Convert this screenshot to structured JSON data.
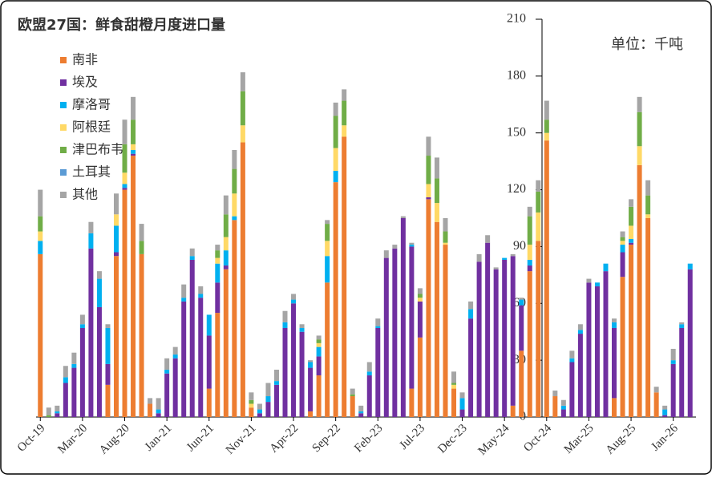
{
  "chart_data": {
    "type": "stacked_bar",
    "title": "欧盟27国：鲜食甜橙月度进口量",
    "unit_label": "单位：千吨",
    "categories": [
      "Oct-19",
      null,
      null,
      null,
      null,
      "Mar-20",
      null,
      null,
      null,
      null,
      "Aug-20",
      null,
      null,
      null,
      null,
      "Jan-21",
      null,
      null,
      null,
      null,
      "Jun-21",
      null,
      null,
      null,
      null,
      "Nov-21",
      null,
      null,
      null,
      null,
      "Apr-22",
      null,
      null,
      null,
      null,
      "Sep-22",
      null,
      null,
      null,
      null,
      "Feb-23",
      null,
      null,
      null,
      null,
      "Jul-23",
      null,
      null,
      null,
      null,
      "Dec-23",
      null,
      null,
      null,
      null,
      "May-24",
      null,
      null,
      null,
      null,
      "Oct-24",
      null,
      null,
      null,
      null,
      "Mar-25",
      null,
      null,
      null,
      null,
      "Aug-25",
      null,
      null,
      null,
      null,
      "Jan-26",
      null,
      null
    ],
    "series": [
      {
        "name": "南非",
        "color": "#ED7D31",
        "values": [
          86,
          0,
          0,
          0,
          0,
          0,
          0,
          0,
          17,
          85,
          120,
          138,
          86,
          7,
          0,
          0,
          0,
          0,
          0,
          0,
          15,
          55,
          78,
          104,
          145,
          5,
          0,
          0,
          0,
          0,
          0,
          0,
          3,
          22,
          71,
          124,
          148,
          11,
          0,
          0,
          0,
          0,
          0,
          0,
          15,
          42,
          115,
          103,
          91,
          15,
          0,
          0,
          0,
          0,
          0,
          0,
          6,
          35,
          77,
          93,
          146,
          11,
          0,
          0,
          0,
          0,
          0,
          0,
          10,
          74,
          91,
          133,
          105,
          13,
          0,
          0,
          0,
          0
        ]
      },
      {
        "name": "埃及",
        "color": "#7030A0",
        "values": [
          0,
          0,
          2,
          18,
          26,
          47,
          89,
          58,
          11,
          2,
          1,
          1,
          0,
          0,
          2,
          23,
          31,
          61,
          83,
          63,
          28,
          16,
          2,
          0,
          0,
          0,
          2,
          8,
          17,
          47,
          60,
          45,
          23,
          10,
          0,
          0,
          0,
          0,
          2,
          22,
          47,
          84,
          89,
          105,
          75,
          19,
          1,
          0,
          0,
          0,
          4,
          52,
          82,
          92,
          78,
          83,
          79,
          24,
          3,
          0,
          0,
          0,
          4,
          29,
          44,
          71,
          69,
          77,
          37,
          13,
          1,
          0,
          0,
          0,
          1,
          28,
          47,
          78
        ]
      },
      {
        "name": "摩洛哥",
        "color": "#00B0F0",
        "values": [
          7,
          0,
          1,
          3,
          2,
          2,
          8,
          15,
          19,
          14,
          2,
          2,
          0,
          0,
          2,
          2,
          2,
          2,
          2,
          2,
          11,
          10,
          8,
          2,
          0,
          0,
          2,
          3,
          2,
          3,
          2,
          2,
          3,
          5,
          14,
          6,
          0,
          0,
          1,
          2,
          1,
          0,
          0,
          0,
          1,
          0,
          0,
          0,
          0,
          0,
          6,
          5,
          0,
          0,
          0,
          1,
          0,
          3,
          3,
          0,
          0,
          0,
          2,
          2,
          2,
          0,
          2,
          4,
          3,
          4,
          2,
          0,
          0,
          0,
          3,
          2,
          2,
          3
        ]
      },
      {
        "name": "阿根廷",
        "color": "#FFD966",
        "values": [
          5,
          0,
          0,
          0,
          0,
          0,
          0,
          0,
          0,
          6,
          6,
          3,
          0,
          0,
          0,
          0,
          0,
          0,
          0,
          0,
          0,
          3,
          7,
          12,
          9,
          2,
          0,
          0,
          0,
          0,
          0,
          0,
          0,
          2,
          8,
          12,
          6,
          0,
          0,
          0,
          0,
          0,
          0,
          0,
          0,
          2,
          7,
          10,
          1,
          2,
          0,
          0,
          0,
          0,
          0,
          0,
          0,
          0,
          8,
          15,
          4,
          0,
          0,
          0,
          0,
          0,
          0,
          0,
          0,
          2,
          7,
          10,
          2,
          0,
          0,
          0,
          0,
          0
        ]
      },
      {
        "name": "津巴布韦",
        "color": "#70AD47",
        "values": [
          8,
          1,
          0,
          0,
          0,
          0,
          0,
          0,
          0,
          0,
          15,
          13,
          7,
          0,
          0,
          0,
          0,
          0,
          0,
          0,
          0,
          4,
          12,
          13,
          18,
          2,
          0,
          0,
          0,
          0,
          0,
          0,
          0,
          2,
          9,
          17,
          13,
          1,
          0,
          0,
          0,
          0,
          0,
          0,
          0,
          2,
          15,
          13,
          6,
          1,
          0,
          0,
          0,
          0,
          0,
          0,
          0,
          0,
          15,
          11,
          7,
          0,
          0,
          0,
          0,
          0,
          0,
          0,
          0,
          2,
          10,
          18,
          10,
          0,
          0,
          0,
          0,
          0
        ]
      },
      {
        "name": "土耳其",
        "color": "#5B9BD5",
        "values": [
          0,
          0,
          0,
          0,
          0,
          0,
          0,
          0,
          0,
          0,
          0,
          0,
          0,
          0,
          0,
          0,
          0,
          0,
          0,
          0,
          0,
          0,
          0,
          0,
          0,
          0,
          0,
          0,
          0,
          0,
          0,
          0,
          0,
          0,
          0,
          0,
          0,
          0,
          0,
          0,
          0,
          0,
          0,
          0,
          0,
          0,
          0,
          0,
          0,
          0,
          0,
          0,
          0,
          0,
          0,
          0,
          0,
          0,
          0,
          0,
          0,
          0,
          0,
          0,
          0,
          0,
          0,
          0,
          0,
          0,
          0,
          0,
          0,
          0,
          0,
          0,
          0,
          0
        ]
      },
      {
        "name": "其他",
        "color": "#A5A5A5",
        "values": [
          14,
          4,
          3,
          6,
          6,
          5,
          6,
          4,
          2,
          11,
          13,
          12,
          9,
          3,
          6,
          6,
          4,
          7,
          4,
          4,
          0,
          3,
          10,
          10,
          10,
          4,
          3,
          7,
          6,
          6,
          3,
          2,
          1,
          2,
          2,
          7,
          6,
          3,
          3,
          5,
          4,
          4,
          2,
          1,
          1,
          3,
          10,
          11,
          7,
          6,
          3,
          4,
          4,
          4,
          1,
          0,
          1,
          1,
          5,
          6,
          10,
          3,
          3,
          4,
          3,
          2,
          0,
          0,
          2,
          3,
          4,
          8,
          8,
          3,
          2,
          6,
          1,
          0
        ]
      }
    ],
    "ylim": [
      0,
      210
    ],
    "yticks": [
      0,
      30,
      60,
      90,
      120,
      150,
      180,
      210
    ],
    "grid": false
  }
}
